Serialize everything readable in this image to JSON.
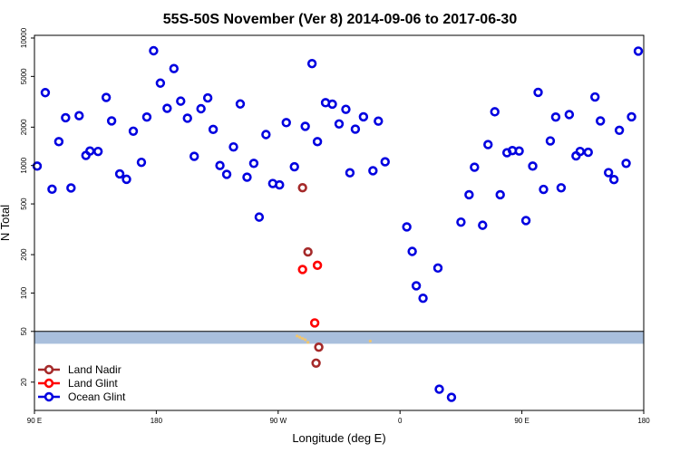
{
  "chart_data": {
    "type": "scatter",
    "title": "55S-50S November (Ver 8)   2014-09-06 to 2017-06-30",
    "xlabel": "Longitude (deg E)",
    "ylabel": "N Total",
    "x_scale": "linear",
    "y_scale": "log",
    "xlim": [
      90,
      540
    ],
    "ylim": [
      12,
      10500
    ],
    "x_ticks": [
      {
        "value": 90,
        "label": "90 E"
      },
      {
        "value": 180,
        "label": "180"
      },
      {
        "value": 270,
        "label": "90 W"
      },
      {
        "value": 360,
        "label": "0"
      },
      {
        "value": 450,
        "label": "90 E"
      },
      {
        "value": 540,
        "label": "180"
      }
    ],
    "y_ticks": [
      {
        "value": 20,
        "label": "20"
      },
      {
        "value": 50,
        "label": "50"
      },
      {
        "value": 100,
        "label": "100"
      },
      {
        "value": 200,
        "label": "200"
      },
      {
        "value": 500,
        "label": "500"
      },
      {
        "value": 1000,
        "label": "1000"
      },
      {
        "value": 2000,
        "label": "2000"
      },
      {
        "value": 5000,
        "label": "5000"
      },
      {
        "value": 10000,
        "label": "10000"
      }
    ],
    "threshold_band": {
      "low": 40,
      "high": 50,
      "color": "#a9bfdc"
    },
    "legend_position": "bottom-left",
    "series": [
      {
        "name": "Land Nadir",
        "color": "#a52a2a",
        "points": [
          [
            288,
            670
          ],
          [
            292,
            210
          ],
          [
            300,
            37.6
          ],
          [
            298,
            28.2
          ]
        ]
      },
      {
        "name": "Land Glint",
        "color": "#ff0000",
        "points": [
          [
            288,
            153
          ],
          [
            299,
            165
          ],
          [
            297,
            58.3
          ]
        ]
      },
      {
        "name": "Ocean Glint",
        "color": "#0000e0",
        "points": [
          [
            92,
            990
          ],
          [
            98,
            3730
          ],
          [
            103,
            652
          ],
          [
            108,
            1540
          ],
          [
            113,
            2370
          ],
          [
            117,
            667
          ],
          [
            123,
            2460
          ],
          [
            128,
            1200
          ],
          [
            131,
            1300
          ],
          [
            137,
            1290
          ],
          [
            143,
            3420
          ],
          [
            147,
            2240
          ],
          [
            153,
            860
          ],
          [
            158,
            780
          ],
          [
            163,
            1860
          ],
          [
            169,
            1060
          ],
          [
            173,
            2400
          ],
          [
            178,
            7950
          ],
          [
            183,
            4430
          ],
          [
            188,
            2810
          ],
          [
            193,
            5760
          ],
          [
            198,
            3200
          ],
          [
            203,
            2350
          ],
          [
            208,
            1180
          ],
          [
            213,
            2790
          ],
          [
            218,
            3390
          ],
          [
            222,
            1920
          ],
          [
            227,
            1000
          ],
          [
            232,
            853
          ],
          [
            237,
            1400
          ],
          [
            242,
            3040
          ],
          [
            247,
            810
          ],
          [
            252,
            1040
          ],
          [
            256,
            394
          ],
          [
            261,
            1750
          ],
          [
            266,
            723
          ],
          [
            271,
            705
          ],
          [
            276,
            2170
          ],
          [
            282,
            978
          ],
          [
            290,
            2030
          ],
          [
            295,
            6300
          ],
          [
            299,
            1540
          ],
          [
            305,
            3110
          ],
          [
            310,
            3030
          ],
          [
            315,
            2120
          ],
          [
            320,
            2760
          ],
          [
            323,
            877
          ],
          [
            327,
            1930
          ],
          [
            333,
            2410
          ],
          [
            340,
            910
          ],
          [
            344,
            2230
          ],
          [
            349,
            1070
          ],
          [
            365,
            330
          ],
          [
            369,
            212
          ],
          [
            372,
            114
          ],
          [
            377,
            91
          ],
          [
            388,
            157
          ],
          [
            389,
            17.6
          ],
          [
            398,
            15.2
          ],
          [
            405,
            360
          ],
          [
            411,
            590
          ],
          [
            415,
            970
          ],
          [
            421,
            340
          ],
          [
            425,
            1460
          ],
          [
            430,
            2640
          ],
          [
            434,
            590
          ],
          [
            439,
            1260
          ],
          [
            443,
            1310
          ],
          [
            448,
            1300
          ],
          [
            453,
            370
          ],
          [
            458,
            990
          ],
          [
            462,
            3750
          ],
          [
            466,
            650
          ],
          [
            471,
            1560
          ],
          [
            475,
            2400
          ],
          [
            479,
            669
          ],
          [
            485,
            2510
          ],
          [
            490,
            1190
          ],
          [
            493,
            1290
          ],
          [
            499,
            1270
          ],
          [
            504,
            3450
          ],
          [
            508,
            2240
          ],
          [
            514,
            880
          ],
          [
            518,
            776
          ],
          [
            522,
            1890
          ],
          [
            527,
            1040
          ],
          [
            531,
            2410
          ],
          [
            536,
            7900
          ]
        ]
      }
    ],
    "band_points": [
      [
        284,
        46
      ],
      [
        286,
        45
      ],
      [
        288,
        44
      ],
      [
        290,
        43
      ],
      [
        338,
        42
      ],
      [
        292,
        41
      ]
    ]
  }
}
